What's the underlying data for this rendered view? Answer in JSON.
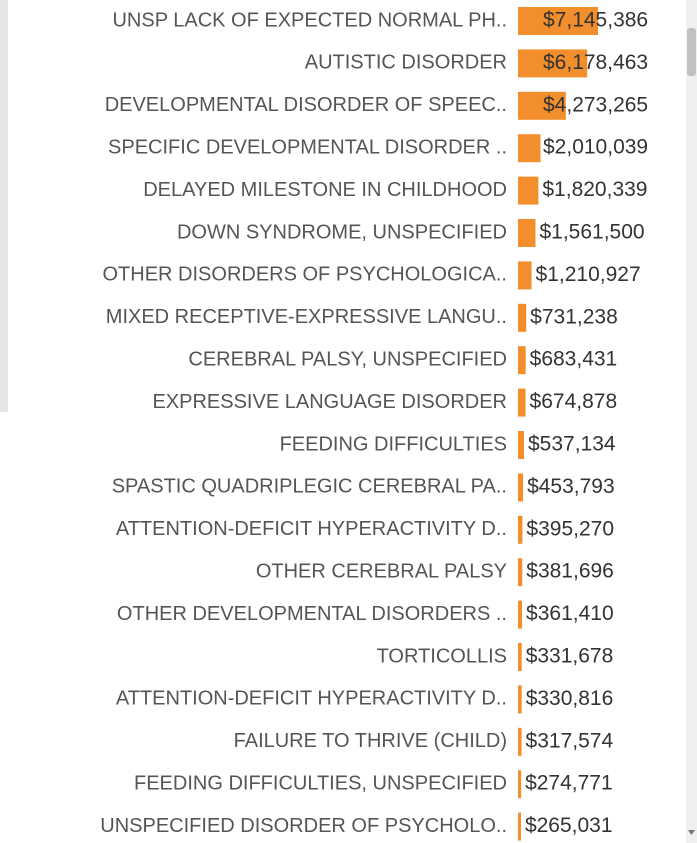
{
  "chart_data": {
    "type": "bar",
    "orientation": "horizontal",
    "color": "#f28e2b",
    "categories": [
      "UNSP LACK OF EXPECTED NORMAL PH..",
      "AUTISTIC DISORDER",
      "DEVELOPMENTAL DISORDER OF SPEEC..",
      "SPECIFIC DEVELOPMENTAL DISORDER ..",
      "DELAYED MILESTONE IN CHILDHOOD",
      "DOWN SYNDROME, UNSPECIFIED",
      "OTHER DISORDERS OF PSYCHOLOGICA..",
      "MIXED RECEPTIVE-EXPRESSIVE LANGU..",
      "CEREBRAL PALSY, UNSPECIFIED",
      "EXPRESSIVE LANGUAGE DISORDER",
      "FEEDING DIFFICULTIES",
      "SPASTIC QUADRIPLEGIC CEREBRAL PA..",
      "ATTENTION-DEFICIT HYPERACTIVITY D..",
      "OTHER CEREBRAL PALSY",
      "OTHER DEVELOPMENTAL DISORDERS ..",
      "TORTICOLLIS",
      "ATTENTION-DEFICIT HYPERACTIVITY D..",
      "FAILURE TO THRIVE (CHILD)",
      "FEEDING DIFFICULTIES, UNSPECIFIED",
      "UNSPECIFIED DISORDER OF PSYCHOLO.."
    ],
    "values": [
      7145386,
      6178463,
      4273265,
      2010039,
      1820339,
      1561500,
      1210927,
      731238,
      683431,
      674878,
      537134,
      453793,
      395270,
      381696,
      361410,
      331678,
      330816,
      317574,
      274771,
      265031
    ],
    "value_labels": [
      "$7,145,386",
      "$6,178,463",
      "$4,273,265",
      "$2,010,039",
      "$1,820,339",
      "$1,561,500",
      "$1,210,927",
      "$731,238",
      "$683,431",
      "$674,878",
      "$537,134",
      "$453,793",
      "$395,270",
      "$381,696",
      "$361,410",
      "$331,678",
      "$330,816",
      "$317,574",
      "$274,771",
      "$265,031"
    ]
  }
}
